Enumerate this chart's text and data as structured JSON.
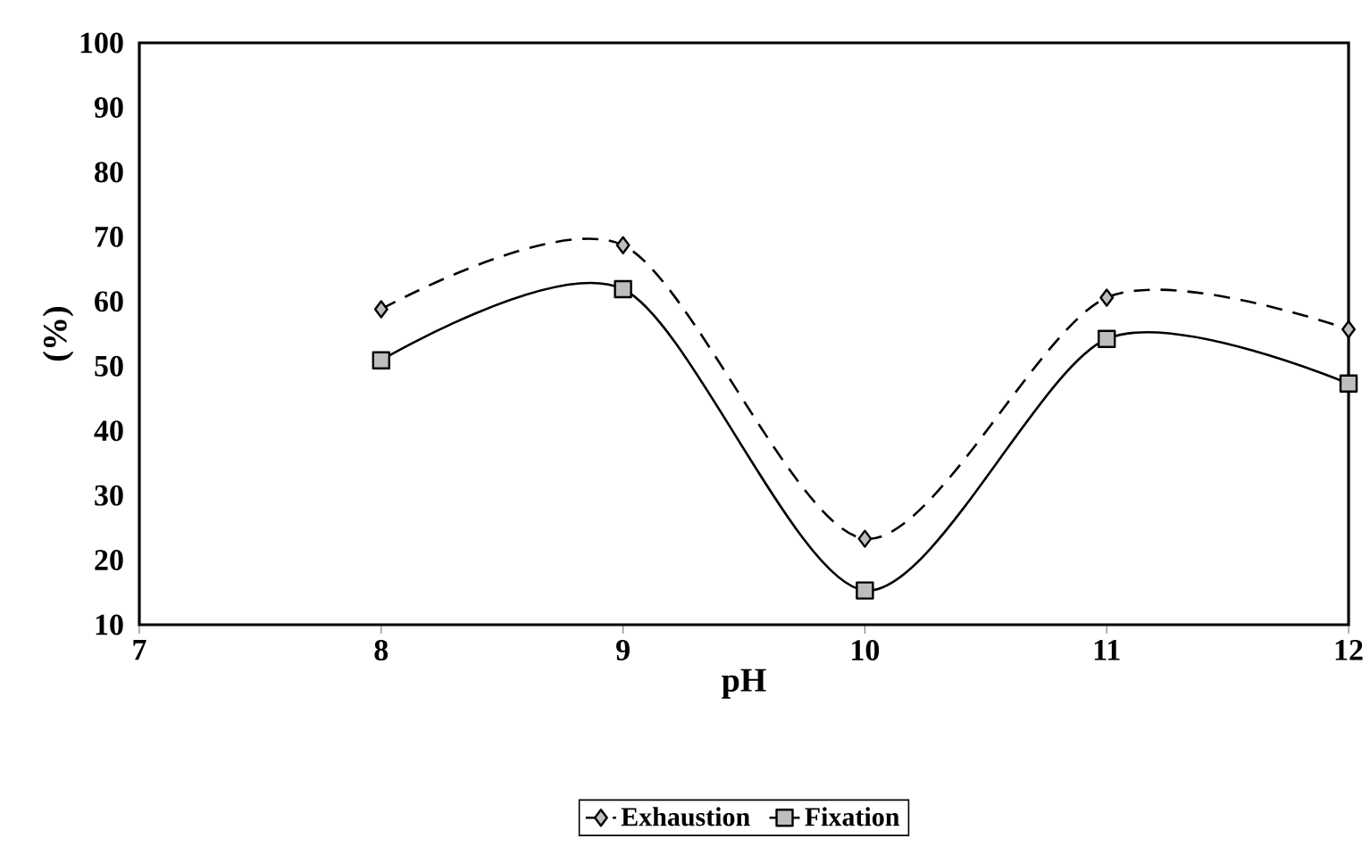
{
  "chart_data": {
    "type": "line",
    "xlabel": "pH",
    "ylabel": "(%)",
    "x": [
      8,
      9,
      10,
      11,
      12
    ],
    "series": [
      {
        "name": "Exhaustion",
        "color": "#000000",
        "values": [
          58.8,
          68.7,
          23.3,
          60.6,
          55.7
        ],
        "marker": "diamond",
        "line_style": "dashed"
      },
      {
        "name": "Fixation",
        "color": "#000000",
        "values": [
          50.9,
          61.9,
          15.3,
          54.2,
          47.3
        ],
        "marker": "square",
        "line_style": "solid"
      }
    ],
    "xlim": [
      7,
      12
    ],
    "xticks": [
      7,
      8,
      9,
      10,
      11,
      12
    ],
    "ylim": [
      10,
      100
    ],
    "yticks": [
      10,
      20,
      30,
      40,
      50,
      60,
      70,
      80,
      90,
      100
    ],
    "grid": false,
    "legend": "bottom"
  }
}
